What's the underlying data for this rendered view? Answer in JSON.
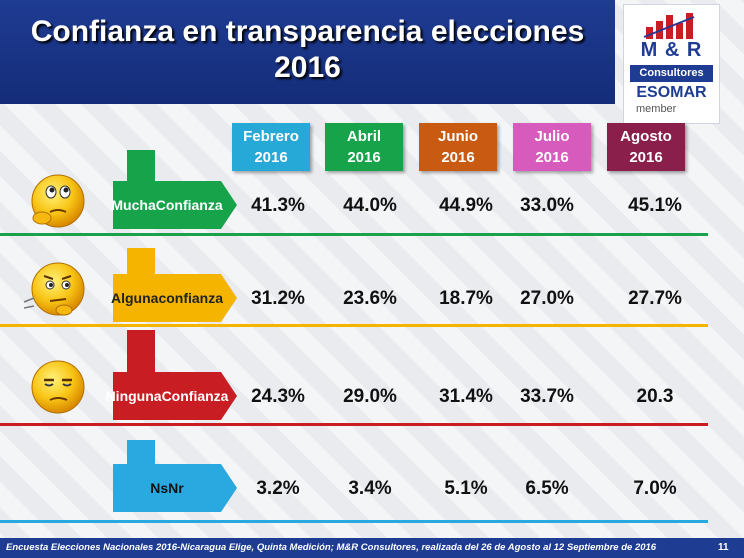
{
  "title_line1": "Confianza en transparencia elecciones",
  "title_line2": "2016",
  "logo": {
    "brand": "M & R",
    "sub": "Consultores",
    "org": "ESOMAR",
    "member": "member"
  },
  "colors": {
    "header": "#1f3c93",
    "months": [
      "#27a9d8",
      "#16a34a",
      "#c85a12",
      "#d65bbd",
      "#8a1f4b"
    ],
    "rows": [
      "#16a34a",
      "#f4b400",
      "#c81e23",
      "#2aa8e0"
    ]
  },
  "chart_data": {
    "type": "table",
    "title": "Confianza en transparencia elecciones 2016",
    "columns": [
      {
        "line1": "Febrero",
        "line2": "2016"
      },
      {
        "line1": "Abril",
        "line2": "2016"
      },
      {
        "line1": "Junio",
        "line2": "2016"
      },
      {
        "line1": "Julio",
        "line2": "2016"
      },
      {
        "line1": "Agosto",
        "line2": "2016"
      }
    ],
    "rows": [
      {
        "label_line1": "Mucha",
        "label_line2": "Confianza",
        "icon": "thinking-face-icon",
        "values": [
          "41.3%",
          "44.0%",
          "44.9%",
          "33.0%",
          "45.1%"
        ]
      },
      {
        "label_line1": "Alguna",
        "label_line2": "confianza",
        "icon": "doubtful-face-icon",
        "values": [
          "31.2%",
          "23.6%",
          "18.7%",
          "27.0%",
          "27.7%"
        ]
      },
      {
        "label_line1": "Ninguna",
        "label_line2": "Confianza",
        "icon": "skeptical-face-icon",
        "values": [
          "24.3%",
          "29.0%",
          "31.4%",
          "33.7%",
          "20.3"
        ]
      },
      {
        "label_line1": "NsNr",
        "label_line2": "",
        "icon": "",
        "values": [
          "3.2%",
          "3.4%",
          "5.1%",
          "6.5%",
          "7.0%"
        ]
      }
    ]
  },
  "footer": {
    "source": "Encuesta Elecciones Nacionales 2016-Nicaragua Elige, Quinta Medición; M&R Consultores, realizada del 26 de Agosto al 12 Septiembre de 2016",
    "page": "11"
  }
}
